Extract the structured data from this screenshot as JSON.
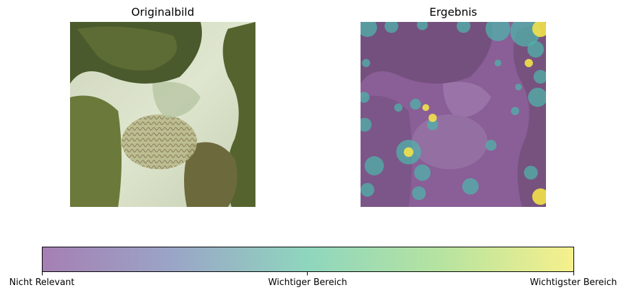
{
  "panels": {
    "left_title": "Originalbild",
    "right_title": "Ergebnis"
  },
  "colorbar": {
    "colors": [
      "#a57fb3",
      "#9aa6c7",
      "#8fd6be",
      "#b6e3a0",
      "#f6f08c"
    ],
    "ticks": [
      {
        "label": "Nicht Relevant",
        "value": 0.0
      },
      {
        "label": "Wichtiger Bereich",
        "value": 0.5
      },
      {
        "label": "Wichtigster Bereich",
        "value": 1.0
      }
    ]
  },
  "heatmap_palette": {
    "low": "#7a4a8c",
    "mid": "#4fb3a9",
    "high": "#f2e24a"
  }
}
